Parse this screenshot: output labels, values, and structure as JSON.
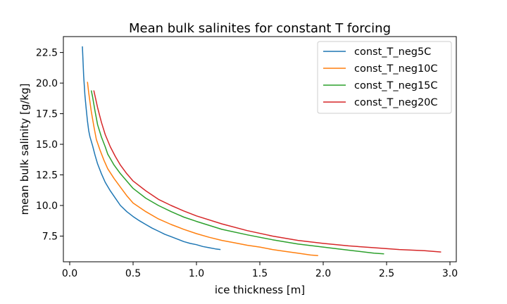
{
  "chart_data": {
    "type": "line",
    "title": "Mean bulk salinites for constant T forcing",
    "xlabel": "ice thickness [m]",
    "ylabel": "mean bulk salinity [g/kg]",
    "xlim": [
      -0.05,
      3.05
    ],
    "ylim": [
      5.4,
      23.8
    ],
    "xticks": [
      0.0,
      0.5,
      1.0,
      1.5,
      2.0,
      2.5,
      3.0
    ],
    "xtick_labels": [
      "0.0",
      "0.5",
      "1.0",
      "1.5",
      "2.0",
      "2.5",
      "3.0"
    ],
    "yticks": [
      7.5,
      10.0,
      12.5,
      15.0,
      17.5,
      20.0,
      22.5
    ],
    "ytick_labels": [
      "7.5",
      "10.0",
      "12.5",
      "15.0",
      "17.5",
      "20.0",
      "22.5"
    ],
    "grid": false,
    "legend_position": "top-right",
    "series": [
      {
        "name": "const_T_neg5C",
        "color": "#1f77b4",
        "x": [
          0.1,
          0.11,
          0.12,
          0.13,
          0.14,
          0.15,
          0.16,
          0.18,
          0.2,
          0.22,
          0.25,
          0.28,
          0.32,
          0.36,
          0.4,
          0.45,
          0.5,
          0.55,
          0.6,
          0.65,
          0.7,
          0.75,
          0.8,
          0.85,
          0.9,
          0.95,
          1.0,
          1.05,
          1.1,
          1.15,
          1.19
        ],
        "y": [
          23.0,
          20.6,
          19.0,
          17.9,
          16.9,
          16.1,
          15.6,
          14.9,
          14.1,
          13.4,
          12.6,
          11.9,
          11.2,
          10.6,
          10.0,
          9.5,
          9.1,
          8.75,
          8.45,
          8.15,
          7.9,
          7.65,
          7.45,
          7.25,
          7.05,
          6.9,
          6.8,
          6.65,
          6.55,
          6.45,
          6.4
        ]
      },
      {
        "name": "const_T_neg10C",
        "color": "#ff7f0e",
        "x": [
          0.14,
          0.15,
          0.17,
          0.19,
          0.21,
          0.24,
          0.27,
          0.3,
          0.35,
          0.4,
          0.45,
          0.5,
          0.6,
          0.7,
          0.8,
          0.9,
          1.0,
          1.1,
          1.2,
          1.3,
          1.4,
          1.5,
          1.6,
          1.7,
          1.8,
          1.9,
          1.96
        ],
        "y": [
          20.1,
          19.2,
          17.7,
          16.5,
          15.4,
          14.5,
          13.7,
          13.0,
          12.2,
          11.5,
          10.8,
          10.2,
          9.5,
          8.9,
          8.45,
          8.05,
          7.7,
          7.4,
          7.15,
          6.95,
          6.75,
          6.6,
          6.4,
          6.25,
          6.1,
          5.95,
          5.9
        ]
      },
      {
        "name": "const_T_neg15C",
        "color": "#2ca02c",
        "x": [
          0.17,
          0.18,
          0.2,
          0.22,
          0.25,
          0.28,
          0.3,
          0.35,
          0.4,
          0.45,
          0.5,
          0.6,
          0.7,
          0.8,
          0.9,
          1.0,
          1.2,
          1.4,
          1.6,
          1.8,
          2.0,
          2.2,
          2.4,
          2.48
        ],
        "y": [
          19.4,
          18.9,
          17.7,
          16.6,
          15.6,
          14.8,
          14.2,
          13.3,
          12.6,
          12.0,
          11.4,
          10.6,
          10.0,
          9.5,
          9.05,
          8.7,
          8.05,
          7.6,
          7.2,
          6.85,
          6.6,
          6.35,
          6.1,
          6.05
        ]
      },
      {
        "name": "const_T_neg20C",
        "color": "#d62728",
        "x": [
          0.19,
          0.22,
          0.25,
          0.28,
          0.32,
          0.36,
          0.4,
          0.45,
          0.5,
          0.6,
          0.7,
          0.8,
          0.9,
          1.0,
          1.2,
          1.4,
          1.6,
          1.8,
          2.0,
          2.2,
          2.4,
          2.6,
          2.8,
          2.93
        ],
        "y": [
          19.4,
          18.0,
          16.8,
          15.8,
          14.8,
          14.0,
          13.3,
          12.6,
          12.0,
          11.2,
          10.5,
          10.0,
          9.55,
          9.15,
          8.5,
          7.95,
          7.5,
          7.15,
          6.9,
          6.7,
          6.55,
          6.4,
          6.3,
          6.2
        ]
      }
    ]
  }
}
